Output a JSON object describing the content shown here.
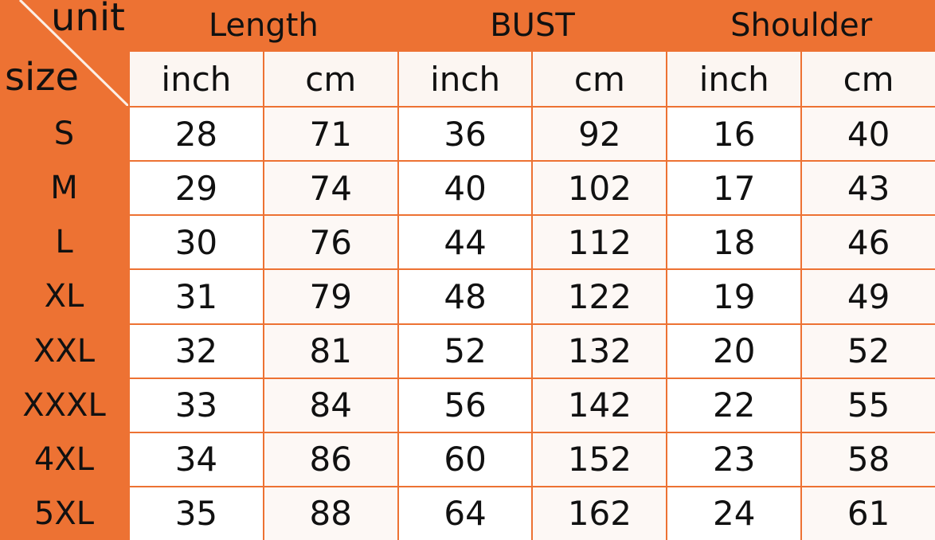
{
  "corner": {
    "unit_label": "unit",
    "size_label": "size"
  },
  "groups": [
    "Length",
    "BUST",
    "Shoulder"
  ],
  "units": [
    "inch",
    "cm",
    "inch",
    "cm",
    "inch",
    "cm"
  ],
  "rows": [
    {
      "size": "S",
      "values": [
        "28",
        "71",
        "36",
        "92",
        "16",
        "40"
      ]
    },
    {
      "size": "M",
      "values": [
        "29",
        "74",
        "40",
        "102",
        "17",
        "43"
      ]
    },
    {
      "size": "L",
      "values": [
        "30",
        "76",
        "44",
        "112",
        "18",
        "46"
      ]
    },
    {
      "size": "XL",
      "values": [
        "31",
        "79",
        "48",
        "122",
        "19",
        "49"
      ]
    },
    {
      "size": "XXL",
      "values": [
        "32",
        "81",
        "52",
        "132",
        "20",
        "52"
      ]
    },
    {
      "size": "XXXL",
      "values": [
        "33",
        "84",
        "56",
        "142",
        "22",
        "55"
      ]
    },
    {
      "size": "4XL",
      "values": [
        "34",
        "86",
        "60",
        "152",
        "23",
        "58"
      ]
    },
    {
      "size": "5XL",
      "values": [
        "35",
        "88",
        "64",
        "162",
        "24",
        "61"
      ]
    }
  ],
  "colors": {
    "accent": "#ED7233",
    "cell": "#FFFFFF"
  }
}
